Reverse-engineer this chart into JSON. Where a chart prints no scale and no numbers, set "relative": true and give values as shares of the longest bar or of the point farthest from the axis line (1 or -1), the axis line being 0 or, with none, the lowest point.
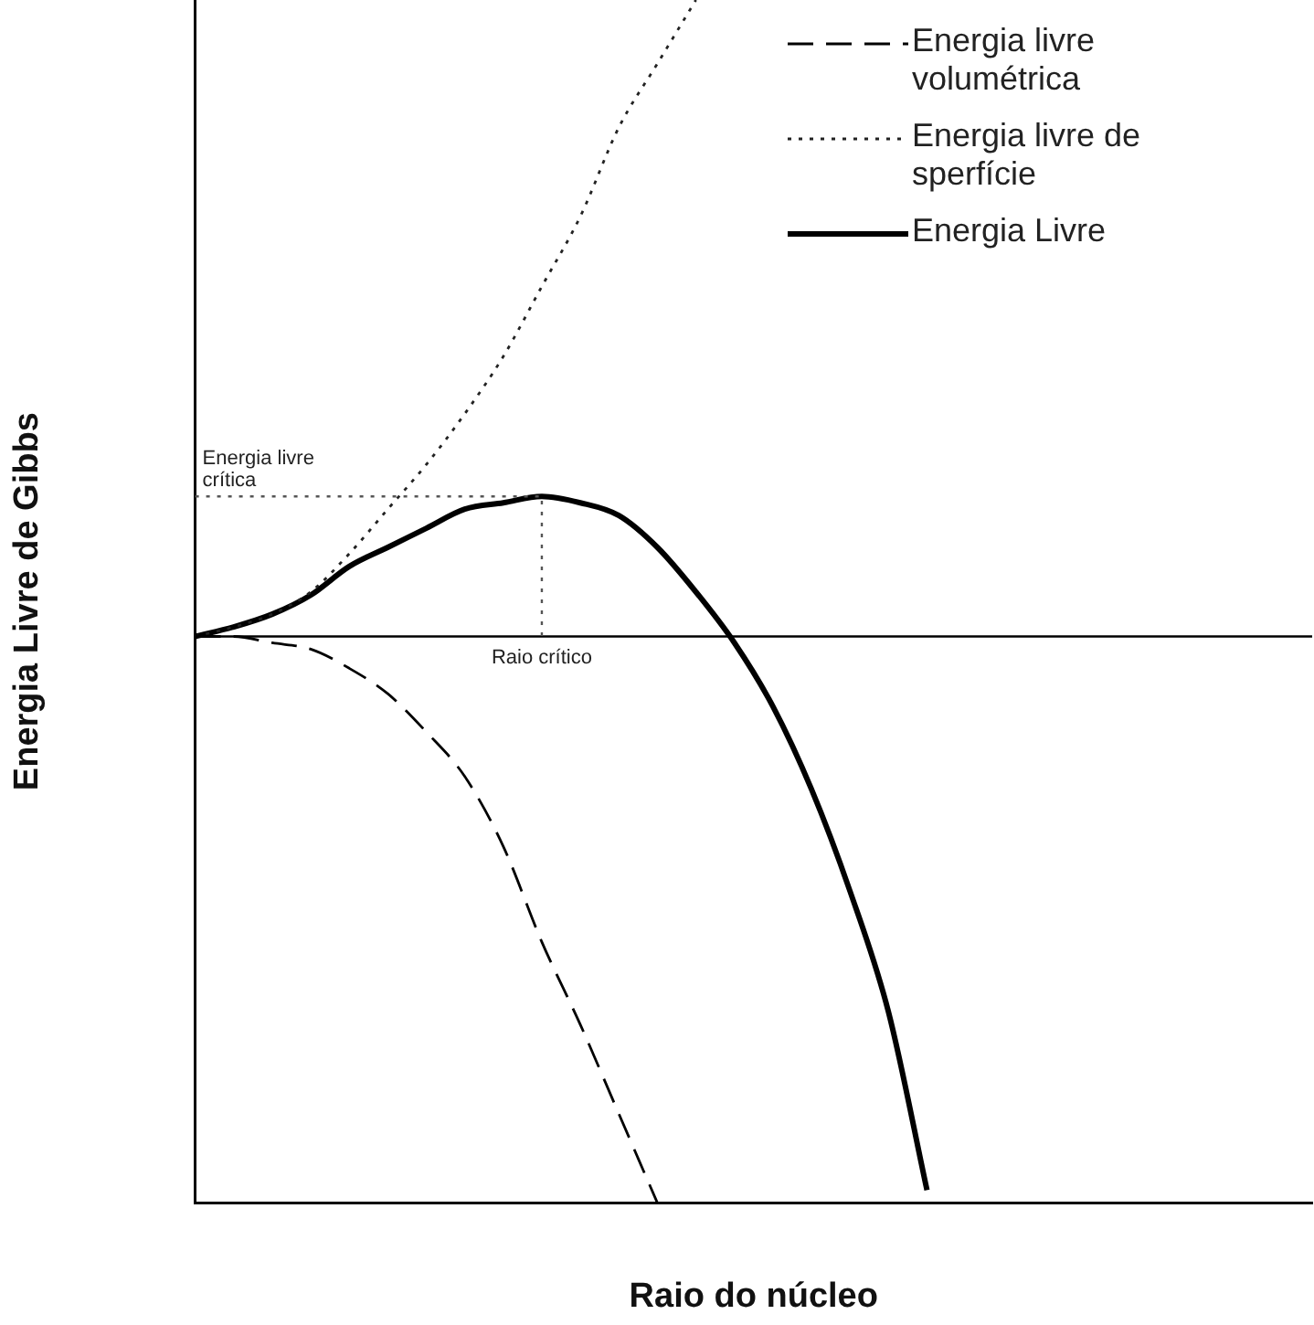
{
  "chart_data": {
    "type": "line",
    "relative": true,
    "xlabel": "Raio do núcleo",
    "ylabel": "Energia Livre de Gibbs",
    "categories": [
      null,
      null,
      null,
      null,
      null,
      null,
      null,
      null,
      null,
      null,
      null,
      null,
      null,
      null,
      null,
      null,
      null,
      null,
      null,
      null,
      null,
      null,
      null,
      null,
      null,
      null,
      null,
      null,
      null,
      null
    ],
    "series": [
      {
        "name": "Energia livre volumétrica",
        "color": "#000000",
        "line_style": "dashed",
        "values": [
          0,
          0,
          -0.01,
          -0.02,
          -0.05,
          -0.09,
          -0.15,
          -0.22,
          -0.33,
          -0.48,
          -0.61,
          -0.75,
          -0.89,
          null,
          null,
          null,
          null,
          null,
          null,
          null,
          null,
          null,
          null,
          null,
          null,
          null,
          null,
          null,
          null,
          null
        ]
      },
      {
        "name": "Energia livre de sperfície",
        "color": "#222222",
        "line_style": "dotted",
        "values": [
          0,
          0.015,
          0.035,
          0.07,
          0.13,
          0.2,
          0.27,
          0.35,
          0.44,
          0.55,
          0.66,
          0.8,
          0.9,
          1,
          null,
          null,
          null,
          null,
          null,
          null,
          null,
          null,
          null,
          null,
          null,
          null,
          null,
          null,
          null,
          null
        ]
      },
      {
        "name": "Energia Livre",
        "color": "#000000",
        "line_style": "solid",
        "values": [
          0,
          0.015,
          0.035,
          0.065,
          0.11,
          0.14,
          0.17,
          0.2,
          0.21,
          0.22,
          0.21,
          0.19,
          0.14,
          0.07,
          -0.01,
          -0.11,
          -0.24,
          -0.4,
          -0.59,
          -0.87,
          null,
          null,
          null,
          null,
          null,
          null,
          null,
          null,
          null,
          null
        ]
      }
    ],
    "ref_lines": [
      {
        "axis": "y",
        "value": 0.22,
        "label": "Energia livre crítica",
        "line_style": "dotted",
        "color": "#555555"
      }
    ],
    "annotations": [
      "Raio crítico"
    ],
    "legend": "top right",
    "grid": false,
    "marker": "none",
    "tick_labels": false
  }
}
